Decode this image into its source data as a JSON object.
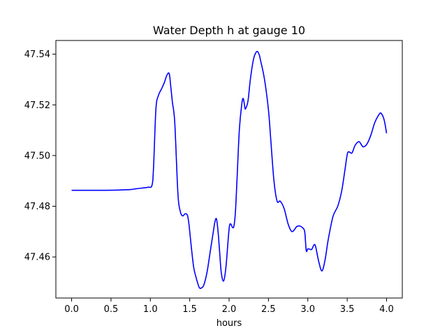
{
  "chart_data": {
    "type": "line",
    "title": "Water Depth h at gauge 10",
    "xlabel": "hours",
    "ylabel": "",
    "xlim": [
      -0.2,
      4.2
    ],
    "ylim": [
      47.4438,
      47.5454
    ],
    "xticks": [
      0.0,
      0.5,
      1.0,
      1.5,
      2.0,
      2.5,
      3.0,
      3.5,
      4.0
    ],
    "xtick_labels": [
      "0.0",
      "0.5",
      "1.0",
      "1.5",
      "2.0",
      "2.5",
      "3.0",
      "3.5",
      "4.0"
    ],
    "yticks": [
      47.46,
      47.48,
      47.5,
      47.52,
      47.54
    ],
    "ytick_labels": [
      "47.46",
      "47.48",
      "47.50",
      "47.52",
      "47.54"
    ],
    "grid": false,
    "legend": "none",
    "colors": {
      "line": "#0000ff",
      "axes": "#000000",
      "background": "#ffffff"
    },
    "series": [
      {
        "x": [
          0.0,
          0.2,
          0.4,
          0.6,
          0.75,
          0.82,
          0.9,
          0.97,
          1.02,
          1.04,
          1.07,
          1.1,
          1.15,
          1.18,
          1.21,
          1.24,
          1.26,
          1.28,
          1.31,
          1.35,
          1.38,
          1.41,
          1.44,
          1.47,
          1.49,
          1.52,
          1.55,
          1.58,
          1.62,
          1.65,
          1.68,
          1.72,
          1.76,
          1.8,
          1.82,
          1.84,
          1.86,
          1.88,
          1.9,
          1.93,
          1.96,
          2.0,
          2.02,
          2.04,
          2.06,
          2.08,
          2.1,
          2.13,
          2.16,
          2.18,
          2.2,
          2.21,
          2.24,
          2.27,
          2.31,
          2.35,
          2.38,
          2.4,
          2.45,
          2.5,
          2.53,
          2.57,
          2.61,
          2.65,
          2.7,
          2.75,
          2.8,
          2.86,
          2.9,
          2.93,
          2.96,
          2.98,
          3.0,
          3.03,
          3.05,
          3.08,
          3.1,
          3.14,
          3.18,
          3.22,
          3.26,
          3.32,
          3.38,
          3.43,
          3.47,
          3.5,
          3.52,
          3.56,
          3.6,
          3.65,
          3.7,
          3.75,
          3.8,
          3.85,
          3.9,
          3.93,
          3.97,
          4.0
        ],
        "y": [
          47.4863,
          47.4863,
          47.4863,
          47.4864,
          47.4866,
          47.4869,
          47.4872,
          47.4875,
          47.4882,
          47.495,
          47.518,
          47.5235,
          47.5268,
          47.529,
          47.5317,
          47.5323,
          47.527,
          47.521,
          47.513,
          47.485,
          47.478,
          47.4762,
          47.477,
          47.4765,
          47.473,
          47.464,
          47.456,
          47.452,
          47.448,
          47.4478,
          47.449,
          47.454,
          47.462,
          47.47,
          47.4738,
          47.475,
          47.47,
          47.462,
          47.454,
          47.4505,
          47.456,
          47.471,
          47.473,
          47.4718,
          47.472,
          47.4775,
          47.49,
          47.51,
          47.52,
          47.5225,
          47.519,
          47.5185,
          47.5215,
          47.53,
          47.538,
          47.541,
          47.54,
          47.5375,
          47.53,
          47.518,
          47.506,
          47.49,
          47.482,
          47.482,
          47.479,
          47.473,
          47.47,
          47.472,
          47.4722,
          47.4716,
          47.47,
          47.4625,
          47.4632,
          47.463,
          47.463,
          47.4648,
          47.464,
          47.458,
          47.4545,
          47.459,
          47.467,
          47.476,
          47.48,
          47.486,
          47.494,
          47.5003,
          47.5015,
          47.501,
          47.504,
          47.5055,
          47.5035,
          47.5045,
          47.508,
          47.513,
          47.516,
          47.5167,
          47.514,
          47.5088
        ]
      }
    ]
  }
}
